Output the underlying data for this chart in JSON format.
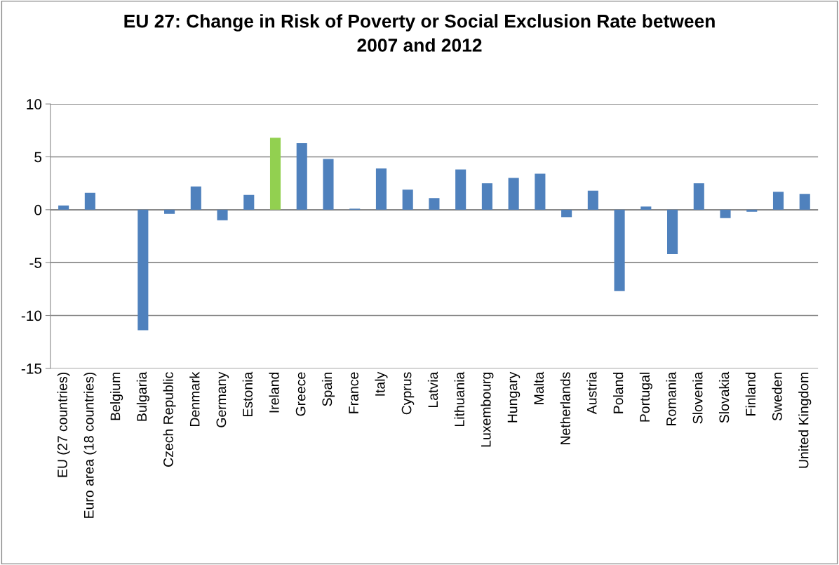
{
  "chart_data": {
    "type": "bar",
    "title": "EU 27: Change in Risk of Poverty or Social Exclusion Rate between\n2007 and 2012",
    "categories": [
      "EU (27 countries)",
      "Euro area (18 countries)",
      "Belgium",
      "Bulgaria",
      "Czech Republic",
      "Denmark",
      "Germany",
      "Estonia",
      "Ireland",
      "Greece",
      "Spain",
      "France",
      "Italy",
      "Cyprus",
      "Latvia",
      "Lithuania",
      "Luxembourg",
      "Hungary",
      "Malta",
      "Netherlands",
      "Austria",
      "Poland",
      "Portugal",
      "Romania",
      "Slovenia",
      "Slovakia",
      "Finland",
      "Sweden",
      "United Kingdom"
    ],
    "values": [
      0.4,
      1.6,
      0,
      -11.4,
      -0.4,
      2.2,
      -1.0,
      1.4,
      6.8,
      6.3,
      4.8,
      0.1,
      3.9,
      1.9,
      1.1,
      3.8,
      2.5,
      3.0,
      3.4,
      -0.7,
      1.8,
      -7.7,
      0.3,
      -4.2,
      2.5,
      -0.8,
      -0.2,
      1.7,
      1.5
    ],
    "colors": [
      "#4f81bd",
      "#4f81bd",
      "#4f81bd",
      "#4f81bd",
      "#4f81bd",
      "#4f81bd",
      "#4f81bd",
      "#4f81bd",
      "#92d050",
      "#4f81bd",
      "#4f81bd",
      "#4f81bd",
      "#4f81bd",
      "#4f81bd",
      "#4f81bd",
      "#4f81bd",
      "#4f81bd",
      "#4f81bd",
      "#4f81bd",
      "#4f81bd",
      "#4f81bd",
      "#4f81bd",
      "#4f81bd",
      "#4f81bd",
      "#4f81bd",
      "#4f81bd",
      "#4f81bd",
      "#4f81bd",
      "#4f81bd"
    ],
    "ylim": [
      -15,
      10
    ],
    "yticks": [
      -15,
      -10,
      -5,
      0,
      5,
      10
    ],
    "grid": "y"
  }
}
